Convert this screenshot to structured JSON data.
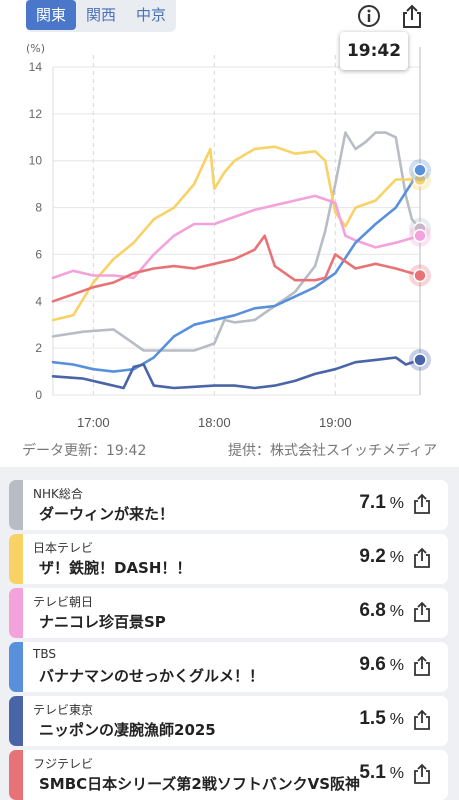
{
  "region_tabs": [
    {
      "label": "関東",
      "active": true
    },
    {
      "label": "関西",
      "active": false
    },
    {
      "label": "中京",
      "active": false
    }
  ],
  "icons": {
    "info": "info-icon",
    "share": "share-icon"
  },
  "current_time": "19:42",
  "footer": {
    "updated": "データ更新：19:42",
    "provider": "提供：株式会社スイッチメディア"
  },
  "chart_data": {
    "type": "line",
    "ylabel": "(%)",
    "ylim": [
      0,
      14
    ],
    "yticks": [
      0,
      2,
      4,
      6,
      8,
      10,
      12,
      14
    ],
    "xticks": [
      {
        "label": "17:00",
        "x": "17:00"
      },
      {
        "label": "18:00",
        "x": "18:00"
      },
      {
        "label": "19:00",
        "x": "19:00"
      }
    ],
    "xlim": [
      "16:40",
      "19:42"
    ],
    "series": [
      {
        "name": "NHK総合",
        "color": "#b8bcc4",
        "x": [
          "16:40",
          "16:55",
          "17:10",
          "17:15",
          "17:25",
          "17:35",
          "17:50",
          "18:00",
          "18:05",
          "18:10",
          "18:20",
          "18:30",
          "18:40",
          "18:50",
          "18:55",
          "19:00",
          "19:05",
          "19:10",
          "19:15",
          "19:20",
          "19:25",
          "19:30",
          "19:35",
          "19:38",
          "19:42"
        ],
        "values": [
          2.5,
          2.7,
          2.8,
          2.5,
          1.9,
          1.9,
          1.9,
          2.2,
          3.2,
          3.1,
          3.2,
          3.8,
          4.4,
          5.5,
          7.0,
          9.0,
          11.2,
          10.5,
          10.8,
          11.2,
          11.2,
          11.0,
          8.5,
          7.5,
          7.1
        ]
      },
      {
        "name": "日本テレビ",
        "color": "#f8d264",
        "x": [
          "16:40",
          "16:50",
          "17:00",
          "17:10",
          "17:20",
          "17:30",
          "17:40",
          "17:50",
          "17:58",
          "18:00",
          "18:05",
          "18:10",
          "18:20",
          "18:30",
          "18:40",
          "18:50",
          "18:55",
          "19:00",
          "19:05",
          "19:10",
          "19:20",
          "19:30",
          "19:42"
        ],
        "values": [
          3.2,
          3.4,
          4.8,
          5.8,
          6.5,
          7.5,
          8.0,
          9.0,
          10.5,
          8.8,
          9.5,
          10.0,
          10.5,
          10.6,
          10.3,
          10.4,
          10.0,
          7.8,
          7.2,
          8.0,
          8.3,
          9.2,
          9.2
        ]
      },
      {
        "name": "テレビ朝日",
        "color": "#f4a2dc",
        "x": [
          "16:40",
          "16:50",
          "17:00",
          "17:10",
          "17:20",
          "17:30",
          "17:40",
          "17:50",
          "18:00",
          "18:10",
          "18:20",
          "18:30",
          "18:40",
          "18:50",
          "19:00",
          "19:05",
          "19:10",
          "19:20",
          "19:30",
          "19:42"
        ],
        "values": [
          5.0,
          5.3,
          5.1,
          5.1,
          5.0,
          6.0,
          6.8,
          7.3,
          7.3,
          7.6,
          7.9,
          8.1,
          8.3,
          8.5,
          8.2,
          6.8,
          6.6,
          6.3,
          6.5,
          6.8
        ]
      },
      {
        "name": "TBS",
        "color": "#5890dc",
        "x": [
          "16:40",
          "16:50",
          "17:00",
          "17:10",
          "17:20",
          "17:30",
          "17:40",
          "17:50",
          "18:00",
          "18:10",
          "18:20",
          "18:30",
          "18:40",
          "18:50",
          "19:00",
          "19:10",
          "19:20",
          "19:30",
          "19:42"
        ],
        "values": [
          1.4,
          1.3,
          1.1,
          1.0,
          1.1,
          1.6,
          2.5,
          3.0,
          3.2,
          3.4,
          3.7,
          3.8,
          4.2,
          4.6,
          5.2,
          6.5,
          7.3,
          8.0,
          9.6
        ]
      },
      {
        "name": "テレビ東京",
        "color": "#4a64a8",
        "x": [
          "16:40",
          "16:55",
          "17:05",
          "17:15",
          "17:20",
          "17:25",
          "17:30",
          "17:40",
          "17:50",
          "18:00",
          "18:10",
          "18:20",
          "18:30",
          "18:40",
          "18:50",
          "19:00",
          "19:10",
          "19:20",
          "19:30",
          "19:35",
          "19:42"
        ],
        "values": [
          0.8,
          0.7,
          0.5,
          0.3,
          1.2,
          1.3,
          0.4,
          0.3,
          0.35,
          0.4,
          0.4,
          0.3,
          0.4,
          0.6,
          0.9,
          1.1,
          1.4,
          1.5,
          1.6,
          1.3,
          1.5
        ]
      },
      {
        "name": "フジテレビ",
        "color": "#e87376",
        "x": [
          "16:40",
          "16:50",
          "17:00",
          "17:10",
          "17:20",
          "17:30",
          "17:40",
          "17:50",
          "18:00",
          "18:10",
          "18:20",
          "18:25",
          "18:30",
          "18:40",
          "18:50",
          "18:55",
          "19:00",
          "19:10",
          "19:20",
          "19:30",
          "19:42"
        ],
        "values": [
          4.0,
          4.3,
          4.6,
          4.8,
          5.2,
          5.4,
          5.5,
          5.4,
          5.6,
          5.8,
          6.2,
          6.8,
          5.5,
          4.9,
          4.9,
          5.0,
          6.0,
          5.4,
          5.6,
          5.4,
          5.1
        ]
      }
    ]
  },
  "channels": [
    {
      "station": "NHK総合",
      "program": "ダーウィンが来た！",
      "rating": "7.1",
      "unit": "%",
      "color": "#b8bcc4"
    },
    {
      "station": "日本テレビ",
      "program": "ザ！鉄腕！DASH！！",
      "rating": "9.2",
      "unit": "%",
      "color": "#f8d264"
    },
    {
      "station": "テレビ朝日",
      "program": "ナニコレ珍百景SP",
      "rating": "6.8",
      "unit": "%",
      "color": "#f4a2dc"
    },
    {
      "station": "TBS",
      "program": "バナナマンのせっかくグルメ！！",
      "rating": "9.6",
      "unit": "%",
      "color": "#5890dc"
    },
    {
      "station": "テレビ東京",
      "program": "ニッポンの凄腕漁師2025",
      "rating": "1.5",
      "unit": "%",
      "color": "#4a64a8"
    },
    {
      "station": "フジテレビ",
      "program": "SMBC日本シリーズ第2戦ソフトバンクVS阪神",
      "rating": "5.1",
      "unit": "%",
      "color": "#e87376"
    }
  ]
}
